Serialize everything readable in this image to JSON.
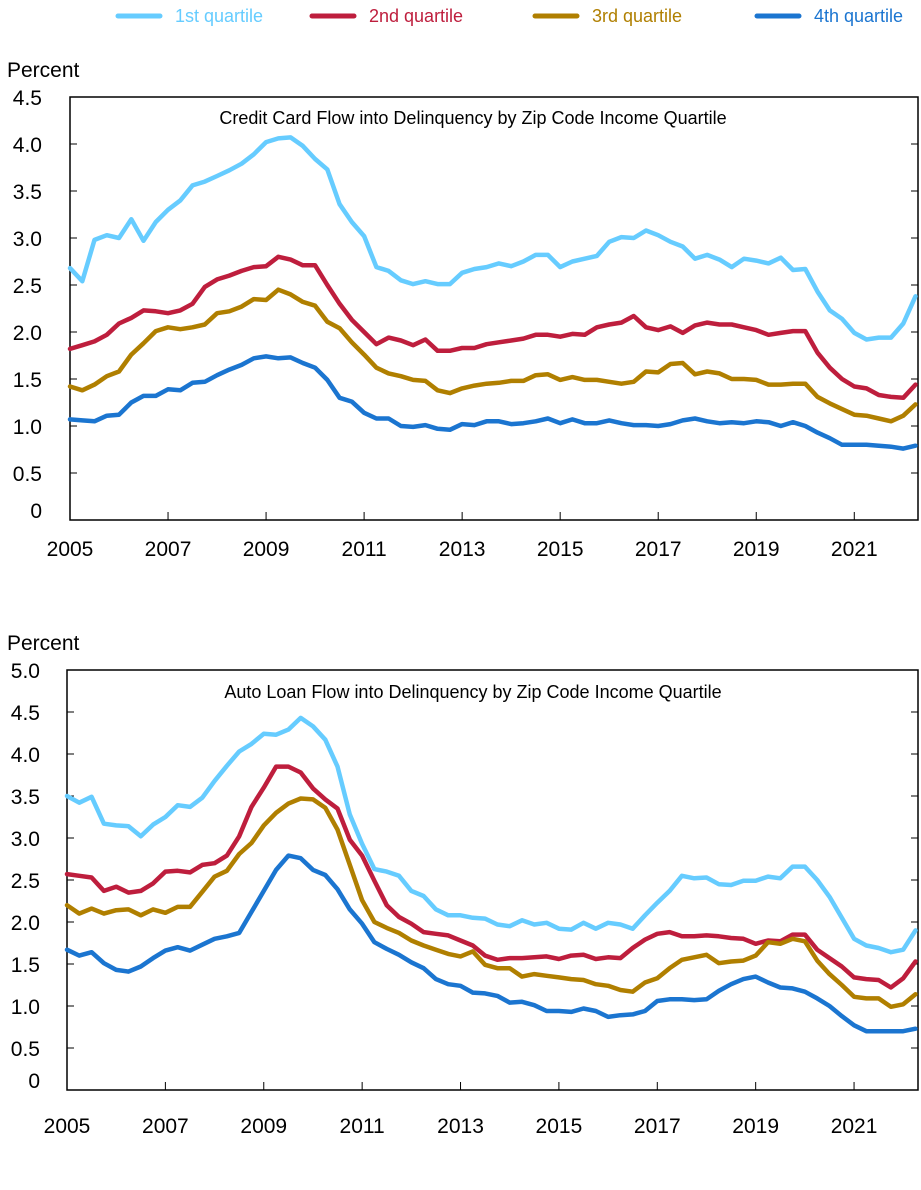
{
  "legend": [
    {
      "label": "1st quartile",
      "color": "#66CCFF"
    },
    {
      "label": "2nd quartile",
      "color": "#BE1E3D"
    },
    {
      "label": "3rd quartile",
      "color": "#B07F00"
    },
    {
      "label": "4th quartile",
      "color": "#1B75D0"
    }
  ],
  "chart_data": [
    {
      "type": "line",
      "title": "Credit Card Flow into Delinquency by Zip Code Income Quartile",
      "ylabel": "Percent",
      "xlabel": "",
      "x_start": "2005 Q1",
      "frequency": "quarterly",
      "xlim": [
        2005,
        2022.3
      ],
      "ylim": [
        0,
        4.5
      ],
      "x_ticks": [
        "2005",
        "2007",
        "2009",
        "2011",
        "2013",
        "2015",
        "2017",
        "2019",
        "2021"
      ],
      "y_ticks": [
        "0",
        "0.5",
        "1.0",
        "1.5",
        "2.0",
        "2.5",
        "3.0",
        "3.5",
        "4.0",
        "4.5"
      ],
      "grid": false,
      "legend_position": "top",
      "series": [
        {
          "name": "1st quartile",
          "color": "#66CCFF",
          "values": [
            2.68,
            2.54,
            2.98,
            3.03,
            3.0,
            3.2,
            2.97,
            3.17,
            3.3,
            3.4,
            3.56,
            3.6,
            3.66,
            3.72,
            3.79,
            3.89,
            4.02,
            4.06,
            4.07,
            3.98,
            3.84,
            3.73,
            3.36,
            3.17,
            3.02,
            2.69,
            2.65,
            2.55,
            2.51,
            2.54,
            2.51,
            2.51,
            2.63,
            2.67,
            2.69,
            2.73,
            2.7,
            2.75,
            2.82,
            2.82,
            2.69,
            2.75,
            2.78,
            2.81,
            2.96,
            3.01,
            3.0,
            3.08,
            3.03,
            2.96,
            2.91,
            2.78,
            2.82,
            2.77,
            2.69,
            2.78,
            2.76,
            2.73,
            2.79,
            2.66,
            2.67,
            2.43,
            2.23,
            2.14,
            1.99,
            1.92,
            1.94,
            1.94,
            2.09,
            2.38
          ]
        },
        {
          "name": "2nd quartile",
          "color": "#BE1E3D",
          "values": [
            1.82,
            1.86,
            1.9,
            1.97,
            2.09,
            2.15,
            2.23,
            2.22,
            2.2,
            2.23,
            2.3,
            2.48,
            2.56,
            2.6,
            2.65,
            2.69,
            2.7,
            2.8,
            2.77,
            2.71,
            2.71,
            2.5,
            2.3,
            2.13,
            2.0,
            1.87,
            1.94,
            1.91,
            1.86,
            1.92,
            1.8,
            1.8,
            1.83,
            1.83,
            1.87,
            1.89,
            1.91,
            1.93,
            1.97,
            1.97,
            1.95,
            1.98,
            1.97,
            2.05,
            2.08,
            2.1,
            2.17,
            2.05,
            2.02,
            2.06,
            1.99,
            2.07,
            2.1,
            2.08,
            2.08,
            2.05,
            2.02,
            1.97,
            1.99,
            2.01,
            2.01,
            1.78,
            1.62,
            1.5,
            1.42,
            1.4,
            1.33,
            1.31,
            1.3,
            1.44
          ]
        },
        {
          "name": "3rd quartile",
          "color": "#B07F00",
          "values": [
            1.42,
            1.38,
            1.44,
            1.53,
            1.58,
            1.76,
            1.88,
            2.01,
            2.05,
            2.03,
            2.05,
            2.08,
            2.2,
            2.22,
            2.27,
            2.35,
            2.34,
            2.45,
            2.4,
            2.32,
            2.28,
            2.11,
            2.04,
            1.89,
            1.76,
            1.62,
            1.56,
            1.53,
            1.49,
            1.48,
            1.38,
            1.35,
            1.4,
            1.43,
            1.45,
            1.46,
            1.48,
            1.48,
            1.54,
            1.55,
            1.49,
            1.52,
            1.49,
            1.49,
            1.47,
            1.45,
            1.47,
            1.58,
            1.57,
            1.66,
            1.67,
            1.55,
            1.58,
            1.56,
            1.5,
            1.5,
            1.49,
            1.44,
            1.44,
            1.45,
            1.45,
            1.31,
            1.24,
            1.18,
            1.12,
            1.11,
            1.08,
            1.05,
            1.11,
            1.23
          ]
        },
        {
          "name": "4th quartile",
          "color": "#1B75D0",
          "values": [
            1.07,
            1.06,
            1.05,
            1.11,
            1.12,
            1.25,
            1.32,
            1.32,
            1.39,
            1.38,
            1.46,
            1.47,
            1.54,
            1.6,
            1.65,
            1.72,
            1.74,
            1.72,
            1.73,
            1.67,
            1.62,
            1.49,
            1.3,
            1.26,
            1.14,
            1.08,
            1.08,
            1.0,
            0.99,
            1.01,
            0.97,
            0.96,
            1.02,
            1.01,
            1.05,
            1.05,
            1.02,
            1.03,
            1.05,
            1.08,
            1.03,
            1.07,
            1.03,
            1.03,
            1.06,
            1.03,
            1.01,
            1.01,
            1.0,
            1.02,
            1.06,
            1.08,
            1.05,
            1.03,
            1.04,
            1.03,
            1.05,
            1.04,
            1.0,
            1.04,
            1.0,
            0.93,
            0.87,
            0.8,
            0.8,
            0.8,
            0.79,
            0.78,
            0.76,
            0.79
          ]
        }
      ]
    },
    {
      "type": "line",
      "title": "Auto Loan Flow into Delinquency by Zip Code Income Quartile",
      "ylabel": "Percent",
      "xlabel": "",
      "x_start": "2005 Q1",
      "frequency": "quarterly",
      "xlim": [
        2005,
        2022.3
      ],
      "ylim": [
        0,
        5.0
      ],
      "x_ticks": [
        "2005",
        "2007",
        "2009",
        "2011",
        "2013",
        "2015",
        "2017",
        "2019",
        "2021"
      ],
      "y_ticks": [
        "0",
        "0.5",
        "1.0",
        "1.5",
        "2.0",
        "2.5",
        "3.0",
        "3.5",
        "4.0",
        "4.5",
        "5.0"
      ],
      "grid": false,
      "legend_position": "top",
      "series": [
        {
          "name": "1st quartile",
          "color": "#66CCFF",
          "values": [
            3.5,
            3.42,
            3.49,
            3.17,
            3.15,
            3.14,
            3.02,
            3.16,
            3.25,
            3.39,
            3.37,
            3.48,
            3.68,
            3.86,
            4.03,
            4.12,
            4.24,
            4.23,
            4.29,
            4.43,
            4.33,
            4.17,
            3.85,
            3.28,
            2.93,
            2.63,
            2.6,
            2.55,
            2.37,
            2.31,
            2.15,
            2.08,
            2.08,
            2.05,
            2.04,
            1.97,
            1.95,
            2.02,
            1.97,
            1.99,
            1.92,
            1.91,
            1.99,
            1.92,
            1.99,
            1.97,
            1.92,
            2.08,
            2.23,
            2.37,
            2.55,
            2.52,
            2.53,
            2.45,
            2.44,
            2.49,
            2.49,
            2.54,
            2.52,
            2.66,
            2.66,
            2.5,
            2.3,
            2.05,
            1.8,
            1.72,
            1.69,
            1.64,
            1.67,
            1.9
          ]
        },
        {
          "name": "2nd quartile",
          "color": "#BE1E3D",
          "values": [
            2.57,
            2.55,
            2.53,
            2.37,
            2.42,
            2.35,
            2.37,
            2.46,
            2.6,
            2.61,
            2.59,
            2.68,
            2.7,
            2.79,
            3.02,
            3.37,
            3.6,
            3.85,
            3.85,
            3.78,
            3.59,
            3.46,
            3.35,
            2.98,
            2.79,
            2.49,
            2.2,
            2.06,
            1.98,
            1.88,
            1.86,
            1.84,
            1.78,
            1.72,
            1.6,
            1.55,
            1.57,
            1.57,
            1.58,
            1.59,
            1.56,
            1.6,
            1.61,
            1.56,
            1.58,
            1.57,
            1.69,
            1.79,
            1.86,
            1.88,
            1.83,
            1.83,
            1.84,
            1.83,
            1.81,
            1.8,
            1.74,
            1.78,
            1.77,
            1.85,
            1.85,
            1.67,
            1.57,
            1.47,
            1.34,
            1.32,
            1.31,
            1.22,
            1.33,
            1.53
          ]
        },
        {
          "name": "3rd quartile",
          "color": "#B07F00",
          "values": [
            2.2,
            2.1,
            2.16,
            2.1,
            2.14,
            2.15,
            2.08,
            2.15,
            2.11,
            2.18,
            2.18,
            2.36,
            2.54,
            2.61,
            2.81,
            2.94,
            3.15,
            3.3,
            3.41,
            3.47,
            3.46,
            3.36,
            3.1,
            2.68,
            2.26,
            2.0,
            1.93,
            1.87,
            1.78,
            1.72,
            1.67,
            1.62,
            1.59,
            1.65,
            1.49,
            1.45,
            1.45,
            1.35,
            1.38,
            1.36,
            1.34,
            1.32,
            1.31,
            1.26,
            1.24,
            1.19,
            1.17,
            1.28,
            1.33,
            1.45,
            1.55,
            1.58,
            1.61,
            1.51,
            1.53,
            1.54,
            1.6,
            1.76,
            1.74,
            1.8,
            1.77,
            1.54,
            1.38,
            1.25,
            1.11,
            1.09,
            1.09,
            0.99,
            1.02,
            1.14
          ]
        },
        {
          "name": "4th quartile",
          "color": "#1B75D0",
          "values": [
            1.67,
            1.6,
            1.64,
            1.51,
            1.43,
            1.41,
            1.47,
            1.57,
            1.66,
            1.7,
            1.66,
            1.73,
            1.8,
            1.83,
            1.87,
            2.12,
            2.37,
            2.62,
            2.79,
            2.76,
            2.62,
            2.56,
            2.39,
            2.15,
            1.98,
            1.76,
            1.68,
            1.61,
            1.52,
            1.45,
            1.32,
            1.26,
            1.24,
            1.16,
            1.15,
            1.12,
            1.04,
            1.05,
            1.01,
            0.94,
            0.94,
            0.93,
            0.97,
            0.94,
            0.87,
            0.89,
            0.9,
            0.94,
            1.06,
            1.08,
            1.08,
            1.07,
            1.08,
            1.18,
            1.26,
            1.32,
            1.35,
            1.28,
            1.22,
            1.21,
            1.17,
            1.09,
            1.0,
            0.88,
            0.77,
            0.7,
            0.7,
            0.7,
            0.7,
            0.73
          ]
        }
      ]
    }
  ]
}
